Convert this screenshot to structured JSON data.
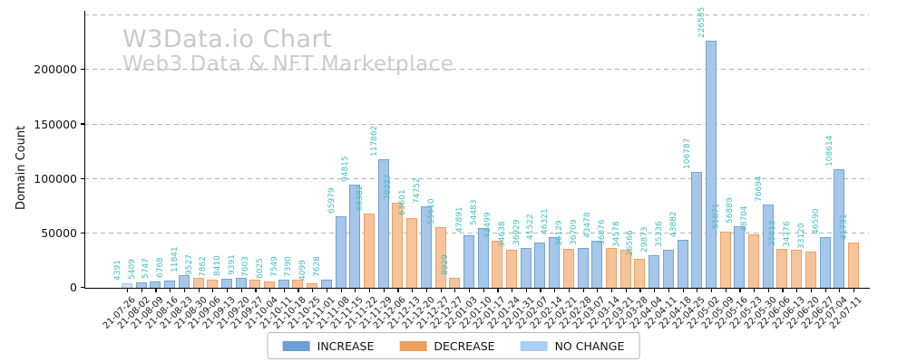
{
  "watermark": {
    "title": "W3Data.io Chart",
    "subtitle": "Web3 Data & NFT Marketplace"
  },
  "y_axis": {
    "label": "Domain Count"
  },
  "legend": {
    "items": [
      {
        "label": "INCREASE",
        "kind": "increase"
      },
      {
        "label": "DECREASE",
        "kind": "decrease"
      },
      {
        "label": "NO CHANGE",
        "kind": "no_change"
      }
    ]
  },
  "chart_data": {
    "type": "bar",
    "title": "W3Data.io Chart",
    "subtitle": "Web3 Data & NFT Marketplace",
    "xlabel": "",
    "ylabel": "Domain Count",
    "ylim": [
      0,
      256000
    ],
    "yticks": [
      0,
      50000,
      100000,
      150000,
      200000
    ],
    "grid_values": [
      50000,
      100000,
      150000,
      200000,
      250000
    ],
    "grid": true,
    "legend_position": "bottom-center",
    "value_label_rotation": 90,
    "x_tick_rotation": 45,
    "colors": {
      "increase": {
        "fill": "#a6c6ea",
        "edge": "#74a4d8",
        "legend": "#6b9fd6"
      },
      "decrease": {
        "fill": "#f6c49c",
        "edge": "#f0a163",
        "legend": "#ef9e5b"
      },
      "no_change": {
        "fill": "#cbe2f6",
        "edge": "#a5cff2",
        "legend": "#a7d0f2"
      },
      "value_label": "#43bfbf",
      "watermark": "#c9c9c9",
      "grid": "#b5b5b5"
    },
    "points": [
      {
        "date": "21-07-26",
        "value": 4391,
        "kind": "no_change"
      },
      {
        "date": "21-08-02",
        "value": 5409,
        "kind": "increase"
      },
      {
        "date": "21-08-09",
        "value": 5747,
        "kind": "increase"
      },
      {
        "date": "21-08-16",
        "value": 6768,
        "kind": "increase"
      },
      {
        "date": "21-08-23",
        "value": 11841,
        "kind": "increase"
      },
      {
        "date": "21-08-30",
        "value": 9527,
        "kind": "decrease"
      },
      {
        "date": "21-09-06",
        "value": 7862,
        "kind": "decrease"
      },
      {
        "date": "21-09-13",
        "value": 8410,
        "kind": "increase"
      },
      {
        "date": "21-09-20",
        "value": 9391,
        "kind": "increase"
      },
      {
        "date": "21-09-27",
        "value": 7603,
        "kind": "decrease"
      },
      {
        "date": "21-10-04",
        "value": 6025,
        "kind": "decrease"
      },
      {
        "date": "21-10-11",
        "value": 7549,
        "kind": "increase"
      },
      {
        "date": "21-10-18",
        "value": 7390,
        "kind": "decrease"
      },
      {
        "date": "21-10-25",
        "value": 4099,
        "kind": "decrease"
      },
      {
        "date": "21-11-01",
        "value": 7628,
        "kind": "increase"
      },
      {
        "date": "21-11-08",
        "value": 65979,
        "kind": "increase"
      },
      {
        "date": "21-11-15",
        "value": 94815,
        "kind": "increase"
      },
      {
        "date": "21-11-22",
        "value": 68382,
        "kind": "decrease"
      },
      {
        "date": "21-11-29",
        "value": 117862,
        "kind": "increase"
      },
      {
        "date": "21-12-06",
        "value": 78327,
        "kind": "decrease"
      },
      {
        "date": "21-12-13",
        "value": 63601,
        "kind": "decrease"
      },
      {
        "date": "21-12-20",
        "value": 74752,
        "kind": "increase"
      },
      {
        "date": "21-12-27",
        "value": 55610,
        "kind": "decrease"
      },
      {
        "date": "22-12-27",
        "value": 8929,
        "kind": "decrease"
      },
      {
        "date": "22-01-03",
        "value": 47891,
        "kind": "increase"
      },
      {
        "date": "22-01-10",
        "value": 54483,
        "kind": "increase"
      },
      {
        "date": "22-01-17",
        "value": 43499,
        "kind": "decrease"
      },
      {
        "date": "22-01-24",
        "value": 34638,
        "kind": "decrease"
      },
      {
        "date": "22-01-31",
        "value": 36929,
        "kind": "increase"
      },
      {
        "date": "22-02-07",
        "value": 41522,
        "kind": "increase"
      },
      {
        "date": "22-02-14",
        "value": 46321,
        "kind": "increase"
      },
      {
        "date": "22-02-21",
        "value": 36129,
        "kind": "decrease"
      },
      {
        "date": "22-02-28",
        "value": 36709,
        "kind": "increase"
      },
      {
        "date": "22-03-07",
        "value": 43478,
        "kind": "increase"
      },
      {
        "date": "22-03-14",
        "value": 36876,
        "kind": "decrease"
      },
      {
        "date": "22-03-21",
        "value": 34578,
        "kind": "decrease"
      },
      {
        "date": "22-03-28",
        "value": 26566,
        "kind": "decrease"
      },
      {
        "date": "22-04-04",
        "value": 29873,
        "kind": "increase"
      },
      {
        "date": "22-04-11",
        "value": 35336,
        "kind": "increase"
      },
      {
        "date": "22-04-18",
        "value": 43882,
        "kind": "increase"
      },
      {
        "date": "22-04-25",
        "value": 106787,
        "kind": "increase"
      },
      {
        "date": "22-05-02",
        "value": 226585,
        "kind": "increase"
      },
      {
        "date": "22-05-09",
        "value": 51871,
        "kind": "decrease"
      },
      {
        "date": "22-05-16",
        "value": 56889,
        "kind": "increase"
      },
      {
        "date": "22-05-23",
        "value": 48704,
        "kind": "decrease"
      },
      {
        "date": "22-05-30",
        "value": 76694,
        "kind": "increase"
      },
      {
        "date": "22-06-06",
        "value": 35813,
        "kind": "decrease"
      },
      {
        "date": "22-06-13",
        "value": 34776,
        "kind": "decrease"
      },
      {
        "date": "22-06-20",
        "value": 33120,
        "kind": "decrease"
      },
      {
        "date": "22-06-27",
        "value": 46590,
        "kind": "increase"
      },
      {
        "date": "22-07-04",
        "value": 108614,
        "kind": "increase"
      },
      {
        "date": "22-07-11",
        "value": 41731,
        "kind": "decrease"
      }
    ]
  }
}
